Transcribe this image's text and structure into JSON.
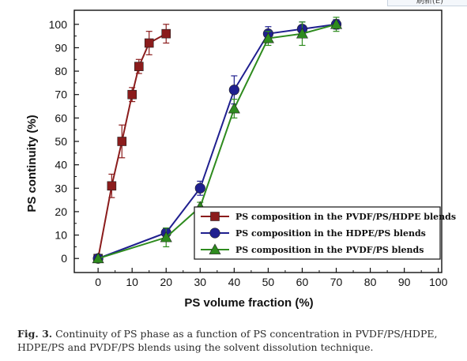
{
  "top_tab_label": "刷新(E)",
  "caption": {
    "label": "Fig. 3.",
    "text": " Continuity of PS phase as a function of PS concentration in PVDF/PS/HDPE, HDPE/PS and PVDF/PS blends using the solvent dissolution technique."
  },
  "chart_data": {
    "type": "line",
    "title": "",
    "xlabel": "PS volume fraction (%)",
    "ylabel": "PS continuity (%)",
    "xlim": [
      -7,
      101
    ],
    "ylim": [
      -6,
      106
    ],
    "xticks": [
      0,
      10,
      20,
      30,
      40,
      50,
      60,
      70,
      80,
      90,
      100
    ],
    "yticks": [
      0,
      10,
      20,
      30,
      40,
      50,
      60,
      70,
      80,
      90,
      100
    ],
    "grid": false,
    "legend_position": "bottom-right",
    "series": [
      {
        "name": "PS composition in the PVDF/PS/HDPE blends",
        "marker": "square",
        "color": "#8b1c1c",
        "x": [
          0,
          4,
          7,
          10,
          12,
          15,
          20
        ],
        "y": [
          0,
          31,
          50,
          70,
          82,
          92,
          96
        ],
        "err": [
          0,
          5,
          7,
          3,
          3,
          5,
          4
        ]
      },
      {
        "name": "PS composition in the HDPE/PS blends",
        "marker": "circle",
        "color": "#1f1f8f",
        "x": [
          0,
          20,
          30,
          40,
          50,
          60,
          70
        ],
        "y": [
          0,
          11,
          30,
          72,
          96,
          98,
          100
        ],
        "err": [
          0,
          2,
          3,
          6,
          3,
          3,
          2
        ]
      },
      {
        "name": "PS composition in the PVDF/PS blends",
        "marker": "triangle",
        "color": "#2e8b1e",
        "x": [
          0,
          20,
          30,
          40,
          50,
          60,
          70
        ],
        "y": [
          0,
          9,
          22,
          64,
          94,
          96,
          100
        ],
        "err": [
          0,
          4,
          2,
          4,
          3,
          5,
          3
        ]
      }
    ]
  }
}
